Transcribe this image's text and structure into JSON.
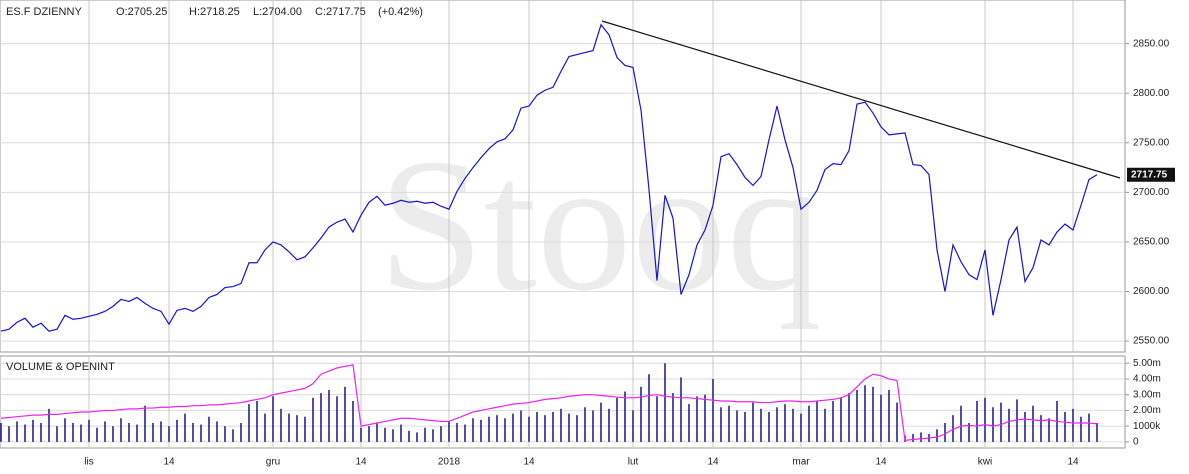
{
  "chart_data": [
    {
      "type": "line",
      "title": "ES.F  DZIENNY",
      "ohlc": [
        "O:2705.25",
        "H:2718.25",
        "L:2704.00",
        "C:2717.75",
        "(+0.42%)"
      ],
      "watermark": "Stooq",
      "last_label": "2717.75",
      "color": "#1414d2",
      "grid": true,
      "ylim": [
        2539,
        2894
      ],
      "yticks": [
        {
          "value": 2550,
          "label": "2550.00"
        },
        {
          "value": 2600,
          "label": "2600.00"
        },
        {
          "value": 2650,
          "label": "2650.00"
        },
        {
          "value": 2700,
          "label": "2700.00"
        },
        {
          "value": 2750,
          "label": "2750.00"
        },
        {
          "value": 2800,
          "label": "2800.00"
        },
        {
          "value": 2850,
          "label": "2850.00"
        }
      ],
      "values": [
        2560,
        2562,
        2569,
        2573,
        2564,
        2568,
        2560,
        2562,
        2576,
        2572,
        2573,
        2575,
        2577,
        2580,
        2585,
        2592,
        2590,
        2594,
        2588,
        2583,
        2580,
        2567,
        2581,
        2583,
        2580,
        2585,
        2594,
        2597,
        2604,
        2605,
        2608,
        2629,
        2629,
        2642,
        2650,
        2647,
        2640,
        2632,
        2635,
        2644,
        2654,
        2665,
        2670,
        2673,
        2660,
        2677,
        2690,
        2696,
        2687,
        2689,
        2692,
        2690,
        2691,
        2689,
        2690,
        2686,
        2683,
        2701,
        2714,
        2725,
        2735,
        2744,
        2751,
        2754,
        2763,
        2785,
        2787,
        2798,
        2803,
        2806,
        2822,
        2837,
        2839,
        2841,
        2843,
        2869,
        2859,
        2836,
        2828,
        2826,
        2783,
        2703,
        2611,
        2697,
        2674,
        2597,
        2617,
        2647,
        2662,
        2687,
        2736,
        2739,
        2728,
        2715,
        2707,
        2716,
        2753,
        2787,
        2753,
        2725,
        2683,
        2690,
        2702,
        2723,
        2729,
        2728,
        2742,
        2789,
        2791,
        2780,
        2766,
        2758,
        2759,
        2760,
        2728,
        2727,
        2718,
        2642,
        2600,
        2647,
        2630,
        2617,
        2612,
        2642,
        2576,
        2612,
        2652,
        2665,
        2610,
        2624,
        2652,
        2647,
        2660,
        2668,
        2662,
        2687,
        2713,
        2717.75
      ]
    },
    {
      "type": "bar",
      "title": "VOLUME & OPENINT",
      "grid": true,
      "categories": [
        null,
        null,
        null,
        null,
        null,
        null,
        null,
        null,
        null,
        null,
        null,
        "lis",
        null,
        null,
        null,
        null,
        null,
        null,
        null,
        null,
        null,
        "14",
        null,
        null,
        null,
        null,
        null,
        null,
        null,
        null,
        null,
        null,
        null,
        null,
        "gru",
        null,
        null,
        null,
        null,
        null,
        null,
        null,
        null,
        null,
        null,
        "14",
        null,
        null,
        null,
        null,
        null,
        null,
        null,
        null,
        null,
        null,
        "2018",
        null,
        null,
        null,
        null,
        null,
        null,
        null,
        null,
        null,
        "14",
        null,
        null,
        null,
        null,
        null,
        null,
        null,
        null,
        null,
        null,
        null,
        null,
        "lut",
        null,
        null,
        null,
        null,
        null,
        null,
        null,
        null,
        null,
        "14",
        null,
        null,
        null,
        null,
        null,
        null,
        null,
        null,
        null,
        null,
        "mar",
        null,
        null,
        null,
        null,
        null,
        null,
        null,
        null,
        null,
        "14",
        null,
        null,
        null,
        null,
        null,
        null,
        null,
        null,
        null,
        null,
        null,
        null,
        "kwi",
        null,
        null,
        null,
        null,
        null,
        null,
        null,
        null,
        null,
        null,
        "14",
        null,
        null,
        null
      ],
      "ylim": [
        -390000,
        5460000
      ],
      "yticks": [
        0,
        {
          "value": 1000000,
          "label": "1000k"
        },
        {
          "value": 2000000,
          "label": "2.00m"
        },
        {
          "value": 3000000,
          "label": "3.00m"
        },
        {
          "value": 4000000,
          "label": "4.00m"
        },
        {
          "value": 5000000,
          "label": "5.00m"
        }
      ],
      "series": [
        {
          "type": "bar",
          "color": "#16168f",
          "values": [
            1200000,
            1000000,
            1300000,
            1100000,
            1400000,
            1200000,
            2100000,
            1000000,
            1500000,
            1200000,
            1100000,
            1400000,
            900000,
            1300000,
            1000000,
            1500000,
            1200000,
            1100000,
            2300000,
            1200000,
            1300000,
            1000000,
            1400000,
            1800000,
            1200000,
            1100000,
            1600000,
            1300000,
            1000000,
            800000,
            1200000,
            2400000,
            2600000,
            1800000,
            2900000,
            2100000,
            1800000,
            1700000,
            1600000,
            2800000,
            3100000,
            3300000,
            2900000,
            3500000,
            2600000,
            900000,
            1000000,
            1200000,
            900000,
            800000,
            1100000,
            700000,
            600000,
            900000,
            800000,
            1000000,
            1300000,
            1200000,
            1100000,
            1500000,
            1400000,
            1600000,
            1700000,
            1500000,
            1800000,
            2000000,
            1600000,
            1900000,
            1700000,
            1900000,
            2100000,
            1800000,
            1700000,
            2200000,
            2000000,
            2500000,
            2100000,
            2800000,
            3200000,
            2000000,
            3500000,
            4300000,
            2900000,
            5000000,
            3100000,
            4100000,
            2400000,
            2900000,
            3000000,
            4000000,
            2200000,
            2300000,
            2000000,
            1900000,
            2500000,
            2100000,
            1900000,
            2200000,
            2400000,
            2100000,
            1800000,
            2300000,
            2600000,
            2100000,
            2600000,
            2800000,
            3100000,
            3300000,
            3600000,
            3500000,
            3000000,
            3300000,
            2500000,
            400000,
            500000,
            600000,
            500000,
            800000,
            1200000,
            1700000,
            2300000,
            1200000,
            2600000,
            2800000,
            2200000,
            2500000,
            2100000,
            2700000,
            1900000,
            2300000,
            1700000,
            1500000,
            2600000,
            1900000,
            2100000,
            1600000,
            1800000,
            1200000
          ]
        },
        {
          "type": "line",
          "color": "#ee22ee",
          "values": [
            1500000,
            1550000,
            1600000,
            1650000,
            1700000,
            1700000,
            1750000,
            1750000,
            1800000,
            1850000,
            1900000,
            1900000,
            1950000,
            2000000,
            2000000,
            2050000,
            2100000,
            2100000,
            2150000,
            2150000,
            2200000,
            2200000,
            2250000,
            2250000,
            2300000,
            2300000,
            2350000,
            2350000,
            2400000,
            2450000,
            2500000,
            2600000,
            2700000,
            2800000,
            3000000,
            3100000,
            3200000,
            3300000,
            3400000,
            3700000,
            4300000,
            4500000,
            4700000,
            4800000,
            4900000,
            1000000,
            1100000,
            1200000,
            1300000,
            1400000,
            1500000,
            1500000,
            1450000,
            1400000,
            1350000,
            1300000,
            1300000,
            1500000,
            1700000,
            1900000,
            2000000,
            2100000,
            2200000,
            2300000,
            2400000,
            2450000,
            2500000,
            2600000,
            2700000,
            2750000,
            2800000,
            2900000,
            2950000,
            3000000,
            3000000,
            2950000,
            2900000,
            2850000,
            2800000,
            2800000,
            2850000,
            2950000,
            3000000,
            2900000,
            2850000,
            2800000,
            2800000,
            2750000,
            2700000,
            2650000,
            2600000,
            2600000,
            2550000,
            2550000,
            2550000,
            2500000,
            2500000,
            2550000,
            2600000,
            2600000,
            2550000,
            2550000,
            2600000,
            2650000,
            2700000,
            2800000,
            3000000,
            3500000,
            4000000,
            4300000,
            4200000,
            4000000,
            3900000,
            100000,
            150000,
            200000,
            250000,
            300000,
            500000,
            800000,
            1000000,
            1050000,
            1000000,
            1100000,
            1000000,
            1100000,
            1300000,
            1400000,
            1450000,
            1400000,
            1350000,
            1400000,
            1300000,
            1250000,
            1200000,
            1200000,
            1200000,
            1150000
          ]
        }
      ]
    }
  ]
}
